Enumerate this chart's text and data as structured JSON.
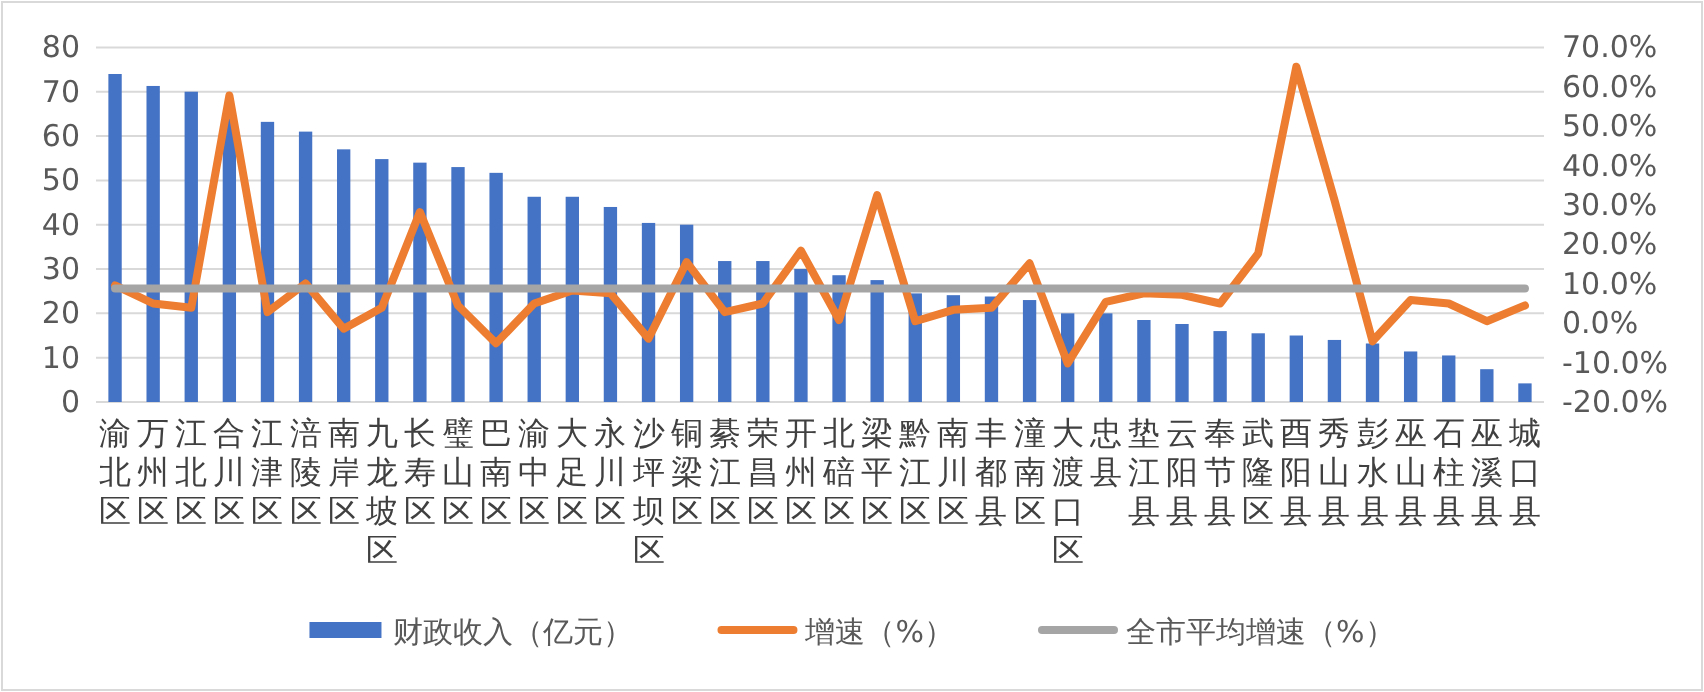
{
  "chart_data": {
    "type": "bar",
    "categories": [
      "渝北区",
      "万州区",
      "江北区",
      "合川区",
      "江津区",
      "涪陵区",
      "南岸区",
      "九龙坡区",
      "长寿区",
      "璧山区",
      "巴南区",
      "渝中区",
      "大足区",
      "永川区",
      "沙坪坝区",
      "铜梁区",
      "綦江区",
      "荣昌区",
      "开州区",
      "北碚区",
      "梁平区",
      "黔江区",
      "南川区",
      "丰都县",
      "潼南区",
      "大渡口区",
      "忠县",
      "垫江县",
      "云阳县",
      "奉节县",
      "武隆区",
      "酉阳县",
      "秀山县",
      "彭水县",
      "巫山县",
      "石柱县",
      "巫溪县",
      "城口县"
    ],
    "series": [
      {
        "name": "财政收入（亿元）",
        "color": "#4472c4",
        "values": [
          74,
          71.3,
          70,
          64,
          63.2,
          61,
          57,
          54.8,
          54,
          53,
          51.7,
          46.3,
          46.3,
          44,
          40.4,
          40,
          31.8,
          31.8,
          30,
          28.6,
          27.5,
          24.5,
          24.1,
          23.8,
          23,
          20,
          20,
          18.5,
          17.6,
          16,
          15.5,
          15,
          14,
          13.2,
          11.4,
          10.5,
          7.4,
          4.2
        ]
      },
      {
        "name": "增速（%）",
        "type": "line",
        "axis": "y2",
        "color": "#ed7d31",
        "values": [
          9.6,
          5.0,
          3.9,
          57.8,
          2.8,
          10.1,
          -1.4,
          3.9,
          28.2,
          4.5,
          -5.1,
          5.0,
          8.3,
          7.6,
          -3.9,
          15.5,
          2.8,
          5.0,
          18.4,
          0.8,
          32.5,
          0.5,
          3.4,
          3.9,
          15.2,
          -10.2,
          5.4,
          7.6,
          7.2,
          5.0,
          17.7,
          65.1,
          31.3,
          -4.6,
          5.9,
          5.0,
          0.5,
          4.5
        ]
      },
      {
        "name": "全市平均增速（%）",
        "type": "line",
        "axis": "y2",
        "color": "#a5a5a5",
        "values": [
          8.8,
          8.8,
          8.8,
          8.8,
          8.8,
          8.8,
          8.8,
          8.8,
          8.8,
          8.8,
          8.8,
          8.8,
          8.8,
          8.8,
          8.8,
          8.8,
          8.8,
          8.8,
          8.8,
          8.8,
          8.8,
          8.8,
          8.8,
          8.8,
          8.8,
          8.8,
          8.8,
          8.8,
          8.8,
          8.8,
          8.8,
          8.8,
          8.8,
          8.8,
          8.8,
          8.8,
          8.8,
          8.8
        ]
      }
    ],
    "ylim": [
      0,
      80
    ],
    "yticks": [
      0,
      10,
      20,
      30,
      40,
      50,
      60,
      70,
      80
    ],
    "y2lim": [
      -20,
      70
    ],
    "y2ticks": [
      {
        "value": -20,
        "label": "-20.0%"
      },
      {
        "value": -10,
        "label": "-10.0%"
      },
      {
        "value": 0,
        "label": "0.0%"
      },
      {
        "value": 10,
        "label": "10.0%"
      },
      {
        "value": 20,
        "label": "20.0%"
      },
      {
        "value": 30,
        "label": "30.0%"
      },
      {
        "value": 40,
        "label": "40.0%"
      },
      {
        "value": 50,
        "label": "50.0%"
      },
      {
        "value": 60,
        "label": "60.0%"
      },
      {
        "value": 70,
        "label": "70.0%"
      }
    ],
    "grid": "y",
    "legend": "bottom",
    "marker": "none",
    "line_style": "solid"
  }
}
